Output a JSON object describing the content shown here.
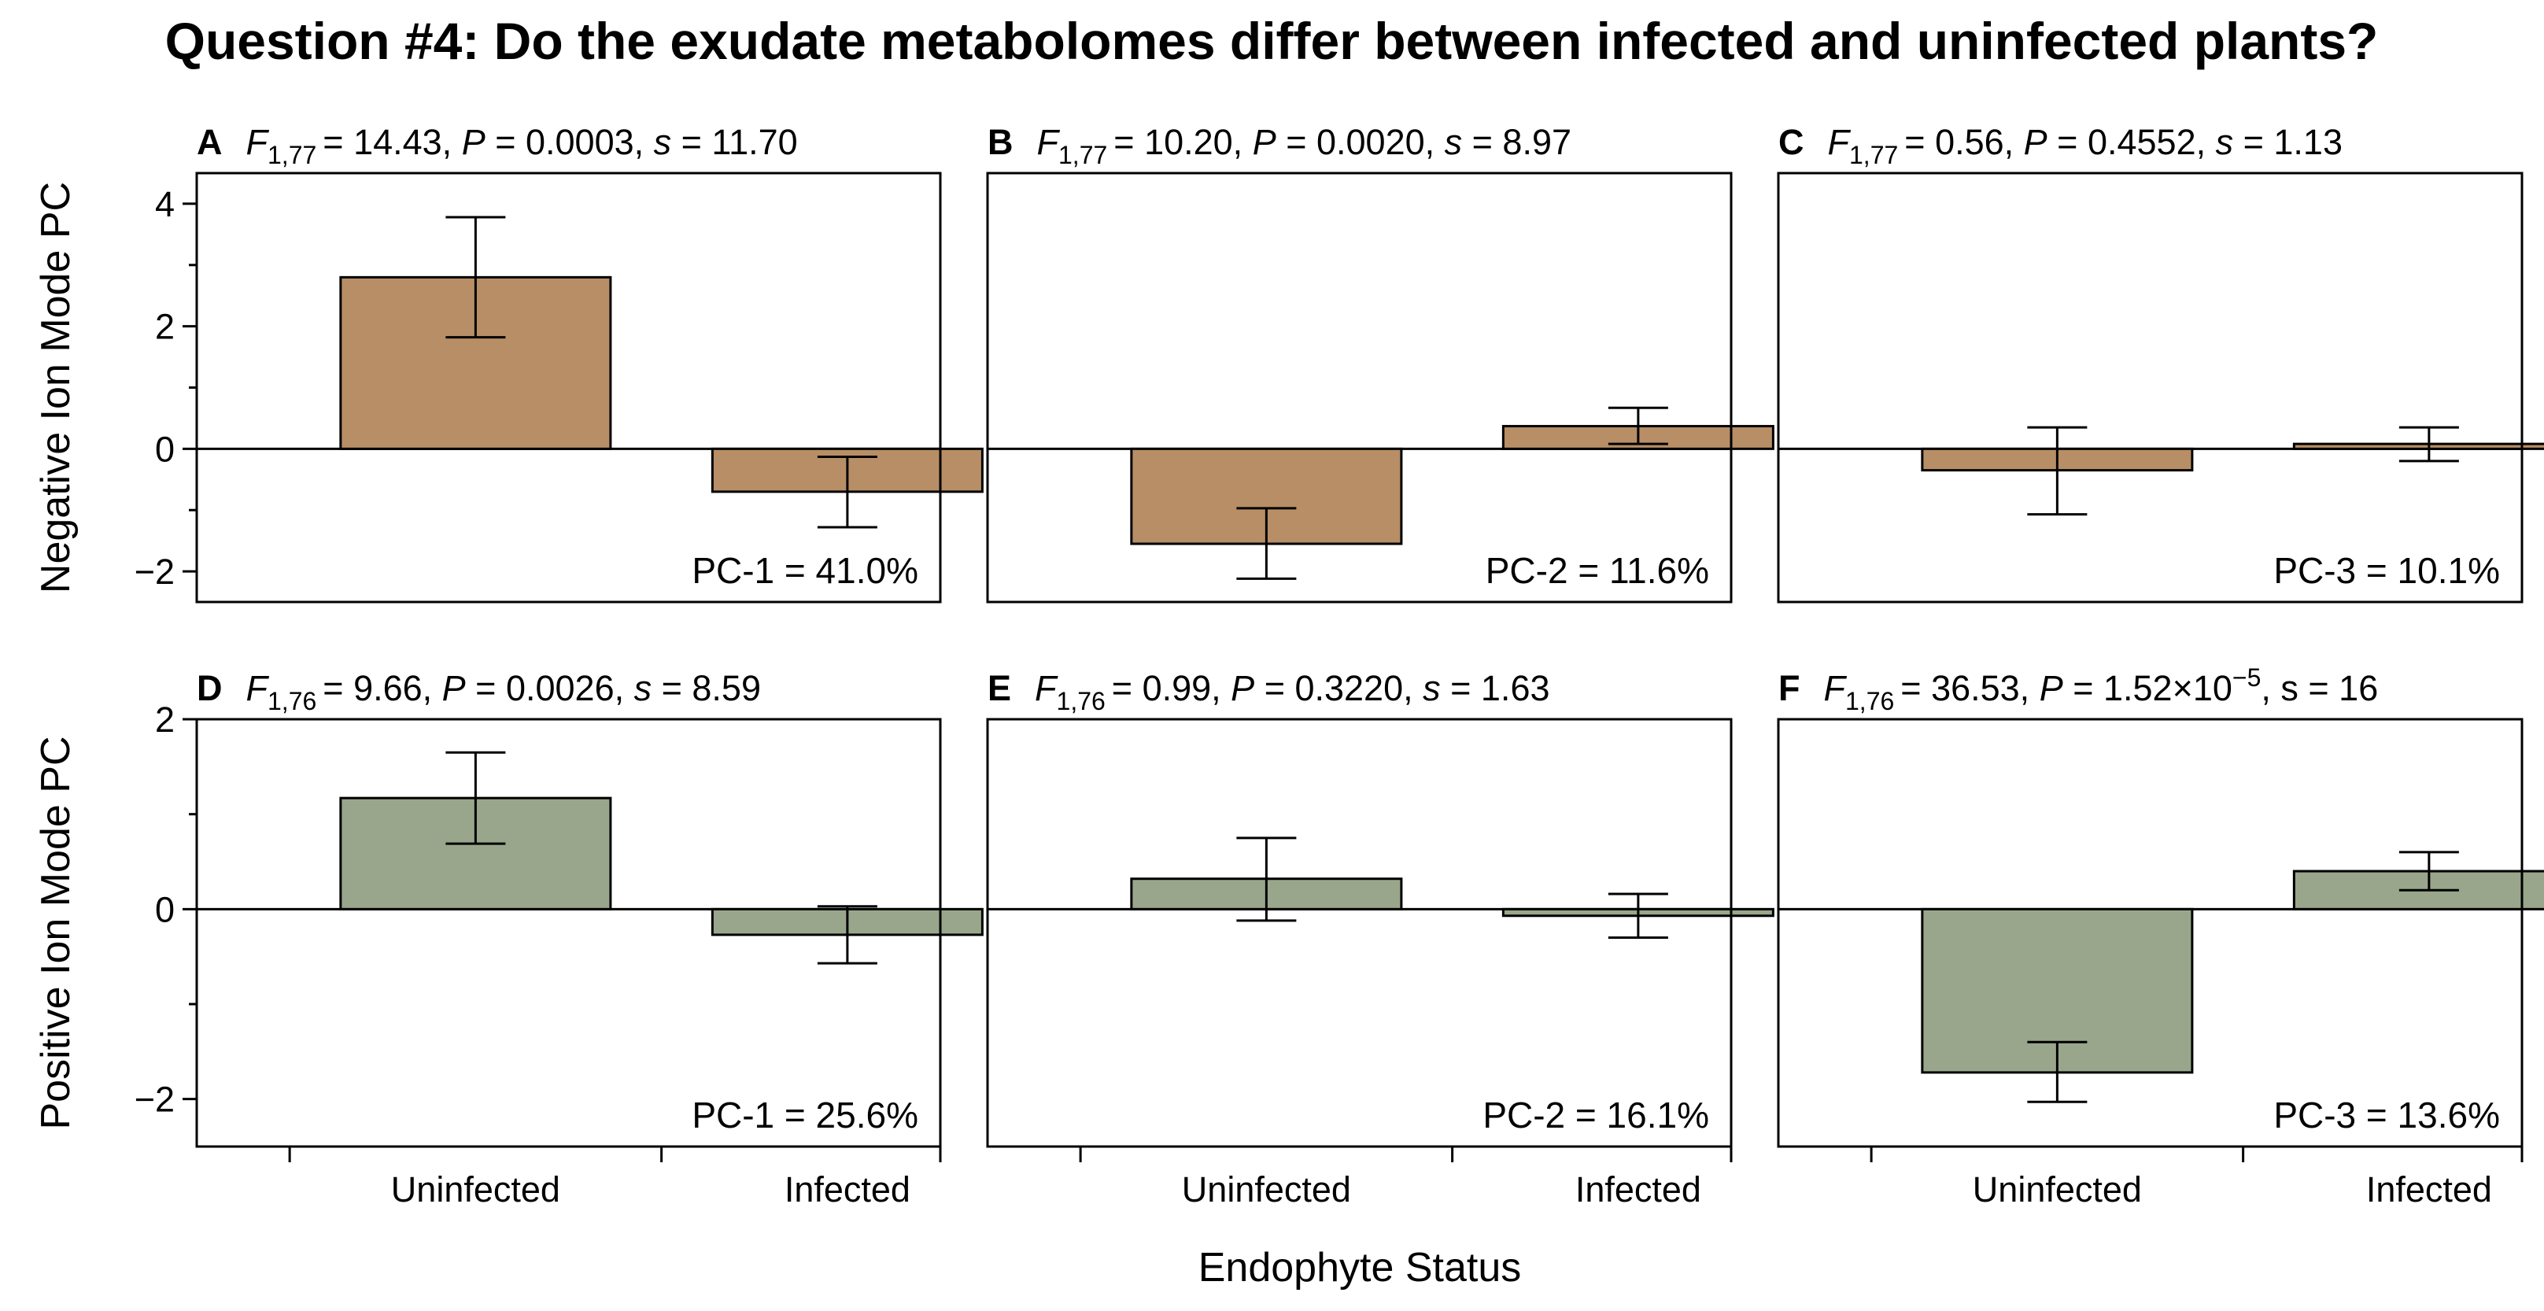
{
  "figure": {
    "title": "Question #4: Do the exudate metabolomes differ between infected and uninfected plants?",
    "xlabel": "Endophyte Status"
  },
  "rows": [
    {
      "ylabel": "Negative Ion Mode PC",
      "ylim": [
        -2.5,
        4.5
      ],
      "yticks": [
        -2,
        0,
        2,
        4
      ],
      "color": "#b88e66"
    },
    {
      "ylabel": "Positive Ion Mode PC",
      "ylim": [
        -2.5,
        2.0
      ],
      "yticks": [
        -2,
        0,
        2
      ],
      "color": "#99a68b"
    }
  ],
  "chart_data": [
    {
      "type": "bar",
      "panel": "A",
      "stat": {
        "F": "F",
        "df": "1,77",
        "Fval": "= 14.43, ",
        "P": "P",
        "Pval": " = 0.0003, ",
        "s": "s",
        "sval": " = 11.70"
      },
      "pc_label": "PC-1 = 41.0%",
      "categories": [
        "Uninfected",
        "Infected"
      ],
      "values": [
        2.8,
        -0.7
      ],
      "err_low": [
        1.82,
        -1.28
      ],
      "err_high": [
        3.78,
        -0.13
      ],
      "ylim": [
        -2.5,
        4.5
      ]
    },
    {
      "type": "bar",
      "panel": "B",
      "stat": {
        "F": "F",
        "df": "1,77",
        "Fval": "= 10.20, ",
        "P": "P",
        "Pval": " = 0.0020, ",
        "s": "s",
        "sval": " = 8.97"
      },
      "pc_label": "PC-2 = 11.6%",
      "categories": [
        "Uninfected",
        "Infected"
      ],
      "values": [
        -1.55,
        0.37
      ],
      "err_low": [
        -2.12,
        0.08
      ],
      "err_high": [
        -0.97,
        0.67
      ],
      "ylim": [
        -2.5,
        4.5
      ]
    },
    {
      "type": "bar",
      "panel": "C",
      "stat": {
        "F": "F",
        "df": "1,77",
        "Fval": "= 0.56, ",
        "P": "P",
        "Pval": " = 0.4552, ",
        "s": "s",
        "sval": " = 1.13"
      },
      "pc_label": "PC-3 = 10.1%",
      "categories": [
        "Uninfected",
        "Infected"
      ],
      "values": [
        -0.35,
        0.08
      ],
      "err_low": [
        -1.07,
        -0.2
      ],
      "err_high": [
        0.35,
        0.35
      ],
      "ylim": [
        -2.5,
        4.5
      ]
    },
    {
      "type": "bar",
      "panel": "D",
      "stat": {
        "F": "F",
        "df": "1,76",
        "Fval": "= 9.66, ",
        "P": "P",
        "Pval": " = 0.0026, ",
        "s": "s",
        "sval": " = 8.59"
      },
      "pc_label": "PC-1 = 25.6%",
      "categories": [
        "Uninfected",
        "Infected"
      ],
      "values": [
        1.17,
        -0.27
      ],
      "err_low": [
        0.69,
        -0.57
      ],
      "err_high": [
        1.65,
        0.03
      ],
      "ylim": [
        -2.5,
        2.0
      ]
    },
    {
      "type": "bar",
      "panel": "E",
      "stat": {
        "F": "F",
        "df": "1,76",
        "Fval": "= 0.99, ",
        "P": "P",
        "Pval": " = 0.3220, ",
        "s": "s",
        "sval": " = 1.63"
      },
      "pc_label": "PC-2 = 16.1%",
      "categories": [
        "Uninfected",
        "Infected"
      ],
      "values": [
        0.32,
        -0.07
      ],
      "err_low": [
        -0.12,
        -0.3
      ],
      "err_high": [
        0.75,
        0.16
      ],
      "ylim": [
        -2.5,
        2.0
      ]
    },
    {
      "type": "bar",
      "panel": "F",
      "stat": {
        "F": "F",
        "df": "1,76",
        "Fval": "= 36.53, ",
        "P": "P",
        "Pval": " = 1.52×10",
        "exp": "−5",
        "s": "s",
        "sval": ", s = 16"
      },
      "pc_label": "PC-3 = 13.6%",
      "categories": [
        "Uninfected",
        "Infected"
      ],
      "values": [
        -1.72,
        0.4
      ],
      "err_low": [
        -2.03,
        0.2
      ],
      "err_high": [
        -1.4,
        0.6
      ],
      "ylim": [
        -2.5,
        2.0
      ]
    }
  ]
}
